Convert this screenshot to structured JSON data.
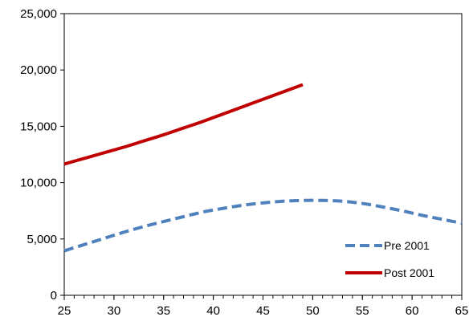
{
  "chart_data": {
    "type": "line",
    "title": "",
    "xlabel": "",
    "ylabel": "",
    "xlim": [
      25,
      65
    ],
    "ylim": [
      0,
      25000
    ],
    "x_ticks": [
      25,
      30,
      35,
      40,
      45,
      50,
      55,
      60,
      65
    ],
    "x_tick_labels": [
      "25",
      "30",
      "35",
      "40",
      "45",
      "50",
      "55",
      "60",
      "65"
    ],
    "x_minor_step": 1,
    "y_ticks": [
      0,
      5000,
      10000,
      15000,
      20000,
      25000
    ],
    "y_tick_labels": [
      "0",
      "5,000",
      "10,000",
      "15,000",
      "20,000",
      "25,000"
    ],
    "grid": false,
    "legend_position": "bottom-right",
    "series": [
      {
        "name": "Pre 2001",
        "color": "#4f81bd",
        "line_style": "dashed",
        "x": [
          25,
          27,
          29,
          31,
          33,
          35,
          37,
          39,
          41,
          43,
          45,
          47,
          49,
          51,
          53,
          55,
          57,
          59,
          61,
          63,
          65
        ],
        "values": [
          3950,
          4500,
          5050,
          5600,
          6100,
          6550,
          6980,
          7400,
          7720,
          8000,
          8200,
          8350,
          8420,
          8420,
          8350,
          8150,
          7850,
          7500,
          7100,
          6750,
          6400
        ]
      },
      {
        "name": "Post 2001",
        "color": "#c00000",
        "line_style": "solid",
        "x": [
          25,
          27,
          29,
          31,
          33,
          35,
          37,
          39,
          41,
          43,
          45,
          47,
          49
        ],
        "values": [
          11650,
          12150,
          12650,
          13150,
          13700,
          14250,
          14850,
          15450,
          16100,
          16750,
          17400,
          18050,
          18700
        ]
      }
    ]
  }
}
